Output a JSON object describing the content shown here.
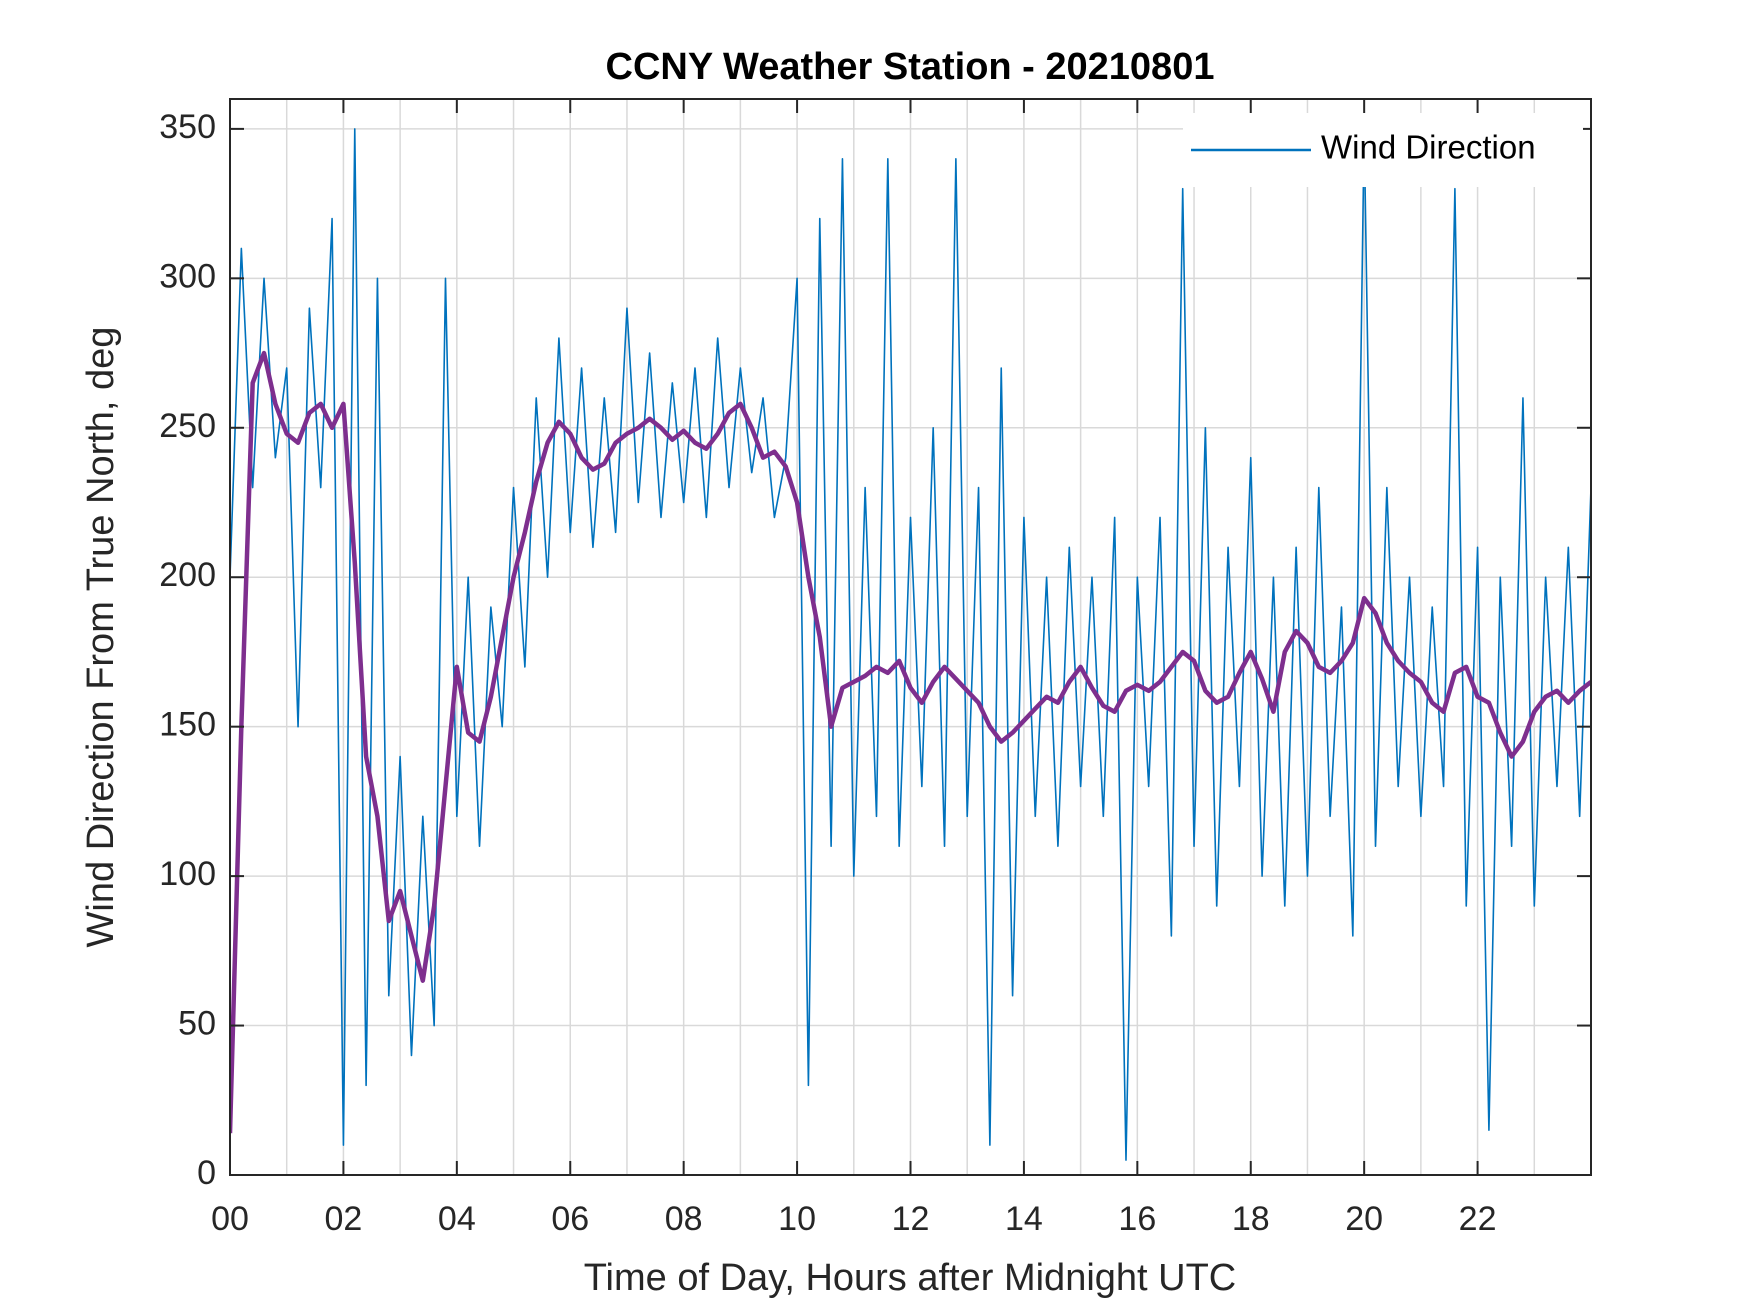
{
  "chart_data": {
    "type": "line",
    "title": "CCNY Weather Station - 20210801",
    "x_label": "Time of Day, Hours after Midnight UTC",
    "y_label": "Wind Direction From True North, deg",
    "xlim": [
      0,
      24
    ],
    "ylim": [
      0,
      360
    ],
    "xticks": [
      {
        "value": 0,
        "label": "00"
      },
      {
        "value": 2,
        "label": "02"
      },
      {
        "value": 4,
        "label": "04"
      },
      {
        "value": 6,
        "label": "06"
      },
      {
        "value": 8,
        "label": "08"
      },
      10,
      12,
      14,
      16,
      18,
      20,
      22
    ],
    "x_minor_grid": [
      1,
      3,
      5,
      7,
      9,
      11,
      13,
      15,
      17,
      19,
      21,
      23
    ],
    "yticks": [
      0,
      50,
      100,
      150,
      200,
      250,
      300,
      350
    ],
    "grid": true,
    "legend": "northeast",
    "x": [
      0,
      0.2,
      0.4,
      0.6,
      0.8,
      1,
      1.2,
      1.4,
      1.6,
      1.8,
      2,
      2.2,
      2.4,
      2.6,
      2.8,
      3,
      3.2,
      3.4,
      3.6,
      3.8,
      4,
      4.2,
      4.4,
      4.6,
      4.8,
      5,
      5.2,
      5.4,
      5.6,
      5.8,
      6,
      6.2,
      6.4,
      6.6,
      6.8,
      7,
      7.2,
      7.4,
      7.6,
      7.8,
      8,
      8.2,
      8.4,
      8.6,
      8.8,
      9,
      9.2,
      9.4,
      9.6,
      9.8,
      10,
      10.2,
      10.4,
      10.6,
      10.8,
      11,
      11.2,
      11.4,
      11.6,
      11.8,
      12,
      12.2,
      12.4,
      12.6,
      12.8,
      13,
      13.2,
      13.4,
      13.6,
      13.8,
      14,
      14.2,
      14.4,
      14.6,
      14.8,
      15,
      15.2,
      15.4,
      15.6,
      15.8,
      16,
      16.2,
      16.4,
      16.6,
      16.8,
      17,
      17.2,
      17.4,
      17.6,
      17.8,
      18,
      18.2,
      18.4,
      18.6,
      18.8,
      19,
      19.2,
      19.4,
      19.6,
      19.8,
      20,
      20.2,
      20.4,
      20.6,
      20.8,
      21,
      21.2,
      21.4,
      21.6,
      21.8,
      22,
      22.2,
      22.4,
      22.6,
      22.8,
      23,
      23.2,
      23.4,
      23.6,
      23.8,
      24
    ],
    "series": [
      {
        "name": "Wind Direction",
        "color": "#0072bd",
        "width": 1.6,
        "values": [
          200,
          310,
          230,
          300,
          240,
          270,
          150,
          290,
          230,
          320,
          10,
          350,
          30,
          300,
          60,
          140,
          40,
          120,
          50,
          300,
          120,
          200,
          110,
          190,
          150,
          230,
          170,
          260,
          200,
          280,
          215,
          270,
          210,
          260,
          215,
          290,
          225,
          275,
          220,
          265,
          225,
          270,
          220,
          280,
          230,
          270,
          235,
          260,
          220,
          240,
          300,
          30,
          320,
          110,
          340,
          100,
          230,
          120,
          340,
          110,
          220,
          130,
          250,
          110,
          340,
          120,
          230,
          10,
          270,
          60,
          220,
          120,
          200,
          110,
          210,
          130,
          200,
          120,
          220,
          5,
          200,
          130,
          220,
          80,
          330,
          110,
          250,
          90,
          210,
          130,
          240,
          100,
          200,
          90,
          210,
          100,
          230,
          120,
          190,
          80,
          350,
          110,
          230,
          130,
          200,
          120,
          190,
          130,
          330,
          90,
          210,
          15,
          200,
          110,
          260,
          90,
          200,
          130,
          210,
          120,
          230
        ]
      },
      {
        "color": "#7e2f8e",
        "width": 4.5,
        "values": [
          14,
          150,
          265,
          275,
          258,
          248,
          245,
          255,
          258,
          250,
          258,
          205,
          140,
          120,
          85,
          95,
          80,
          65,
          90,
          130,
          170,
          148,
          145,
          160,
          180,
          200,
          215,
          232,
          245,
          252,
          248,
          240,
          236,
          238,
          245,
          248,
          250,
          253,
          250,
          246,
          249,
          245,
          243,
          248,
          255,
          258,
          250,
          240,
          242,
          237,
          225,
          200,
          180,
          150,
          163,
          165,
          167,
          170,
          168,
          172,
          163,
          158,
          165,
          170,
          166,
          162,
          158,
          150,
          145,
          148,
          152,
          156,
          160,
          158,
          165,
          170,
          163,
          157,
          155,
          162,
          164,
          162,
          165,
          170,
          175,
          172,
          162,
          158,
          160,
          168,
          175,
          166,
          155,
          175,
          182,
          178,
          170,
          168,
          172,
          178,
          193,
          188,
          178,
          172,
          168,
          165,
          158,
          155,
          168,
          170,
          160,
          158,
          148,
          140,
          145,
          155,
          160,
          162,
          158,
          162,
          165
        ]
      }
    ]
  }
}
